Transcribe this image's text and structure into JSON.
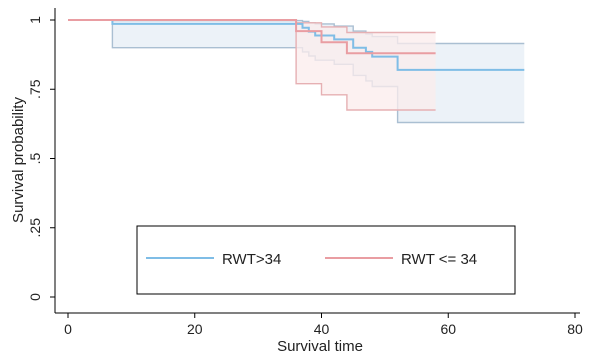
{
  "chart_data": {
    "type": "line",
    "subtype": "kaplan-meier",
    "title": "",
    "xlabel": "Survival time",
    "ylabel": "Survival probability",
    "xlim": [
      0,
      80
    ],
    "ylim": [
      0,
      1
    ],
    "xticks": [
      0,
      20,
      40,
      60,
      80
    ],
    "yticks": [
      {
        "value": 0,
        "label": "0"
      },
      {
        "value": 0.25,
        "label": ".25"
      },
      {
        "value": 0.5,
        "label": ".5"
      },
      {
        "value": 0.75,
        "label": ".75"
      },
      {
        "value": 1,
        "label": "1"
      }
    ],
    "grid": false,
    "legend": {
      "position": "bottom-center",
      "entries": [
        "RWT>34",
        "RWT <= 34"
      ]
    },
    "series": [
      {
        "name": "RWT>34",
        "color": "#7fbde6",
        "ci_color": "#aabfd2",
        "ci_fill": "#e6eef6",
        "x": [
          0,
          7,
          37,
          38,
          39,
          40,
          42,
          45,
          47,
          48,
          52,
          72
        ],
        "y": [
          1.0,
          0.986,
          0.972,
          0.958,
          0.944,
          0.944,
          0.93,
          0.9,
          0.885,
          0.868,
          0.82,
          0.82
        ],
        "ci_upper": [
          1.0,
          0.998,
          0.995,
          0.99,
          0.986,
          0.986,
          0.978,
          0.96,
          0.95,
          0.94,
          0.915,
          0.915
        ],
        "ci_lower": [
          1.0,
          0.9,
          0.885,
          0.87,
          0.855,
          0.855,
          0.84,
          0.8,
          0.78,
          0.76,
          0.63,
          0.63
        ]
      },
      {
        "name": "RWT <= 34",
        "color": "#e99da2",
        "ci_color": "#e6b0b3",
        "ci_fill": "#fbecec",
        "x": [
          0,
          36,
          37,
          40,
          44,
          58
        ],
        "y": [
          1.0,
          0.96,
          0.96,
          0.92,
          0.88,
          0.88
        ],
        "ci_upper": [
          1.0,
          0.99,
          0.99,
          0.975,
          0.955,
          0.955
        ],
        "ci_lower": [
          1.0,
          0.77,
          0.77,
          0.73,
          0.675,
          0.675
        ]
      }
    ]
  }
}
